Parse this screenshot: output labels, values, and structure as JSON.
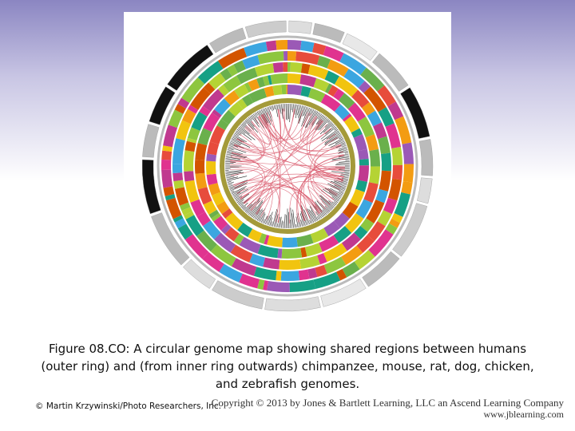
{
  "figure": {
    "caption": "Figure 08.CO: A circular genome map showing shared regions between humans (outer ring) and (from inner ring outwards) chimpanzee, mouse, rat, dog, chicken, and zebrafish genomes.",
    "credit": "© Martin Krzywinski/Photo Researchers, Inc.",
    "copyright": "Copyright © 2013 by Jones & Bartlett Learning, LLC an Ascend Learning Company",
    "website": "www.jblearning.com"
  }
}
